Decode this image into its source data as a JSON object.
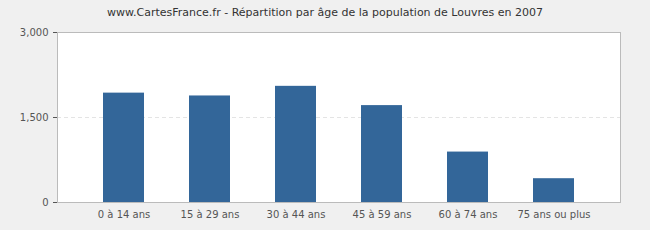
{
  "chart_data": {
    "type": "bar",
    "title": "www.CartesFrance.fr - Répartition par âge de la population de Louvres en 2007",
    "categories": [
      "0 à 14 ans",
      "15 à 29 ans",
      "30 à 44 ans",
      "45 à 59 ans",
      "60 à 74 ans",
      "75 ans ou plus"
    ],
    "values": [
      1930,
      1880,
      2050,
      1710,
      890,
      420
    ],
    "color": "#336699",
    "ylim": [
      0,
      3000
    ],
    "yticks": [
      0,
      1500,
      3000
    ],
    "grid": true
  }
}
